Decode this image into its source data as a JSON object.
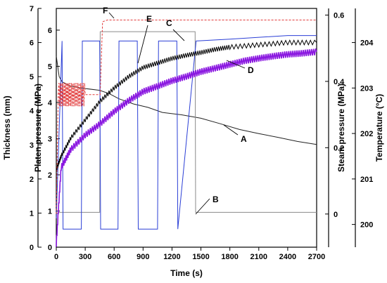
{
  "chart_data": {
    "type": "line",
    "xlabel": "Time (s)",
    "xlim": [
      0,
      2700
    ],
    "x_ticks": [
      "0",
      "300",
      "600",
      "900",
      "1200",
      "1500",
      "1800",
      "2100",
      "2400",
      "2700"
    ],
    "axes": {
      "thickness": {
        "label": "Thickness (mm)",
        "ylim": [
          0,
          7
        ],
        "ticks": [
          "0",
          "1",
          "2",
          "3",
          "4",
          "5",
          "6",
          "7"
        ]
      },
      "platen": {
        "label": "Platen pressure (MPa)",
        "ylim": [
          0,
          6.6
        ],
        "ticks": [
          "0",
          "1",
          "2",
          "3",
          "4",
          "5",
          "6"
        ]
      },
      "steam": {
        "label": "Steam pressure (MPa)",
        "ylim": [
          -0.1,
          0.62
        ],
        "ticks": [
          "0",
          "0.2",
          "0.4",
          "0.6"
        ]
      },
      "temperature": {
        "label": "Temperature (°C)",
        "ylim": [
          199.5,
          204.75
        ],
        "ticks": [
          "200",
          "201",
          "202",
          "203",
          "204"
        ]
      }
    },
    "series": [
      {
        "label": "A",
        "color": "#222222",
        "axis": "thickness",
        "x": [
          0,
          30,
          60,
          150,
          300,
          450,
          550,
          650,
          800,
          950,
          1100,
          1300,
          1500,
          1700,
          1900,
          2100,
          2300,
          2500,
          2700
        ],
        "y": [
          5.6,
          5.0,
          4.85,
          4.72,
          4.65,
          4.6,
          4.5,
          4.35,
          4.2,
          4.1,
          3.95,
          3.88,
          3.78,
          3.62,
          3.45,
          3.33,
          3.22,
          3.1,
          3.01
        ]
      },
      {
        "label": "B",
        "color": "#8a8a8a",
        "axis": "steam",
        "x": [
          0,
          20,
          60,
          300,
          450,
          455,
          1440,
          1445,
          1500,
          2000,
          2400,
          2700
        ],
        "y": [
          0,
          0.005,
          0.005,
          0.005,
          0.005,
          0.55,
          0.55,
          0.005,
          0.005,
          0.005,
          0.005,
          0.005
        ]
      },
      {
        "label": "C",
        "color": "#2b3fd6",
        "axis": "platen",
        "x": [
          0,
          60,
          70,
          260,
          270,
          450,
          460,
          640,
          650,
          840,
          850,
          1050,
          1060,
          1250,
          1260,
          1450,
          1800,
          2400,
          2700
        ],
        "y": [
          0.8,
          5.7,
          0.5,
          0.5,
          5.7,
          5.7,
          0.5,
          0.5,
          5.7,
          5.7,
          0.5,
          0.5,
          5.7,
          5.7,
          0.5,
          5.7,
          5.75,
          5.85,
          5.85
        ]
      },
      {
        "label": "D",
        "color": "#8a17e0",
        "axis": "platen",
        "x": [
          0,
          50,
          150,
          300,
          450,
          600,
          750,
          900,
          1050,
          1200,
          1350,
          1500,
          1650,
          1800,
          1950,
          2100,
          2250,
          2400,
          2550,
          2700
        ],
        "y": [
          0.1,
          2.2,
          2.7,
          3.1,
          3.4,
          3.75,
          4.05,
          4.3,
          4.45,
          4.6,
          4.72,
          4.85,
          4.95,
          5.05,
          5.15,
          5.22,
          5.28,
          5.33,
          5.36,
          5.4
        ]
      },
      {
        "label": "E",
        "color": "#000000",
        "axis": "temperature",
        "x": [
          0,
          50,
          150,
          300,
          450,
          600,
          750,
          900,
          1050,
          1200,
          1350,
          1500,
          1650,
          1800,
          2100,
          2400,
          2700
        ],
        "y": [
          201.2,
          201.5,
          201.9,
          202.3,
          202.7,
          203.0,
          203.25,
          203.45,
          203.55,
          203.65,
          203.72,
          203.78,
          203.85,
          203.9,
          203.95,
          204.0,
          204.0
        ]
      },
      {
        "label": "F",
        "color": "#e23a3a",
        "axis": "steam",
        "x": [
          0,
          20,
          150,
          300,
          455,
          480,
          530,
          700,
          1000,
          1500,
          2000,
          2700
        ],
        "y": [
          0,
          0.36,
          0.36,
          0.36,
          0.36,
          0.58,
          0.585,
          0.585,
          0.585,
          0.585,
          0.585,
          0.585
        ]
      }
    ],
    "annotations": [
      {
        "text": "A"
      },
      {
        "text": "B"
      },
      {
        "text": "C"
      },
      {
        "text": "D"
      },
      {
        "text": "E"
      },
      {
        "text": "F"
      }
    ]
  }
}
